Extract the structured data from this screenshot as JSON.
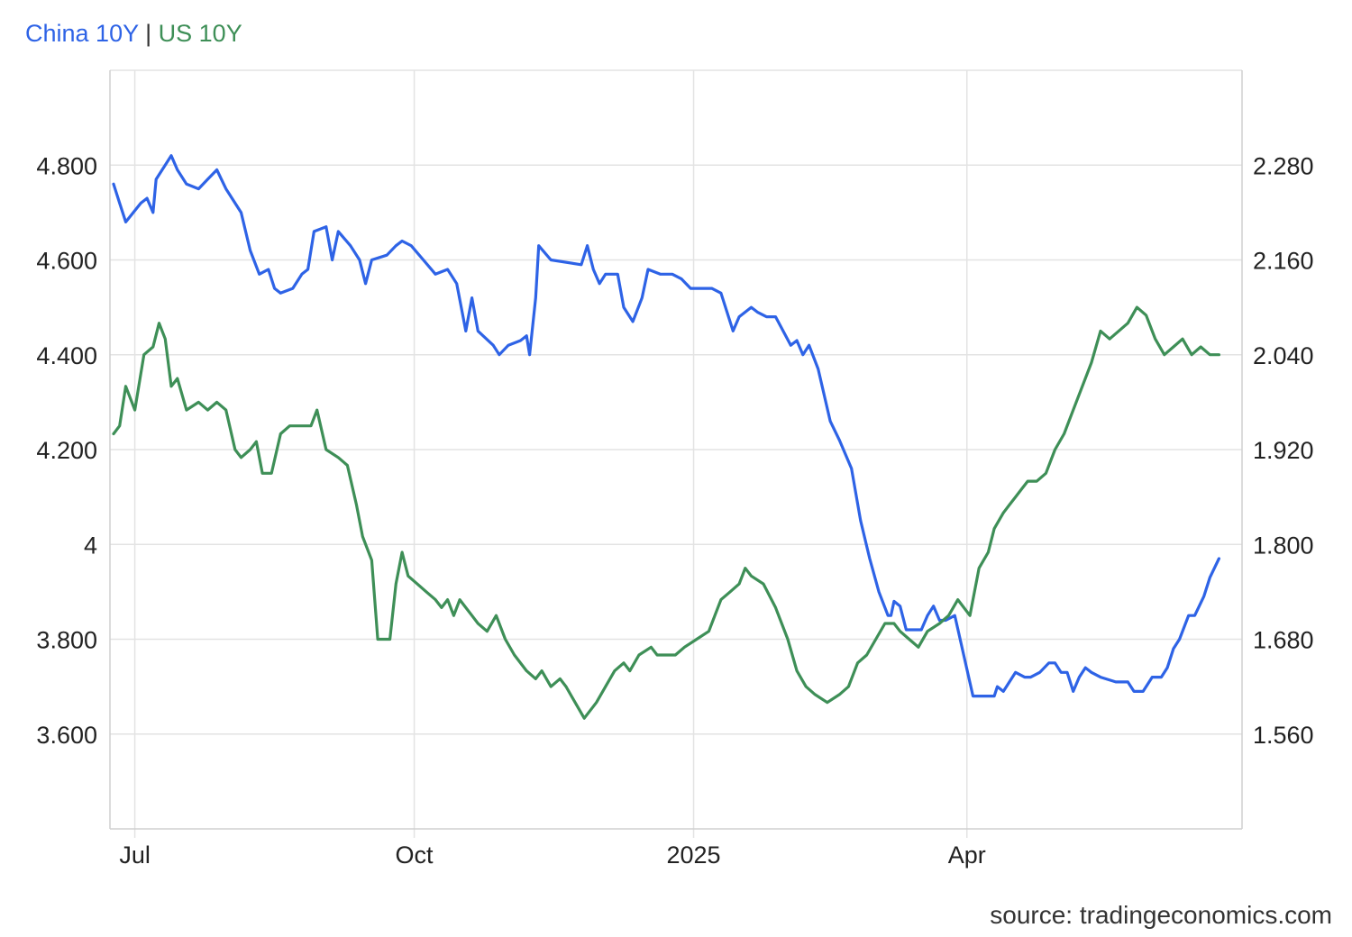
{
  "legend": {
    "china_label": "China 10Y",
    "separator": "|",
    "us_label": "US 10Y",
    "china_color": "#2e63e6",
    "us_color": "#3e8f57"
  },
  "source": "source: tradingeconomics.com",
  "chart_data": {
    "type": "line",
    "title": "",
    "grid": true,
    "legend_placement": "top-left",
    "x_ticks": [
      "Jul",
      "Oct",
      "2025",
      "Apr"
    ],
    "x_range": [
      "2024-06-24",
      "2025-06-23"
    ],
    "y_left": {
      "ticks": [
        "3.600",
        "3.800",
        "4",
        "4.200",
        "4.400",
        "4.600",
        "4.800"
      ],
      "range": [
        3.4,
        5.0
      ]
    },
    "y_right": {
      "ticks": [
        "1.560",
        "1.680",
        "1.800",
        "1.920",
        "2.040",
        "2.160",
        "2.280"
      ],
      "range": [
        1.44,
        2.4
      ]
    },
    "series": [
      {
        "name": "China 10Y",
        "axis": "left",
        "color": "#2e63e6",
        "points": [
          [
            "2024-06-24",
            4.76
          ],
          [
            "2024-06-26",
            4.72
          ],
          [
            "2024-06-28",
            4.68
          ],
          [
            "2024-07-03",
            4.72
          ],
          [
            "2024-07-05",
            4.73
          ],
          [
            "2024-07-07",
            4.7
          ],
          [
            "2024-07-08",
            4.77
          ],
          [
            "2024-07-11",
            4.8
          ],
          [
            "2024-07-13",
            4.82
          ],
          [
            "2024-07-15",
            4.79
          ],
          [
            "2024-07-18",
            4.76
          ],
          [
            "2024-07-22",
            4.75
          ],
          [
            "2024-07-25",
            4.77
          ],
          [
            "2024-07-28",
            4.79
          ],
          [
            "2024-07-31",
            4.75
          ],
          [
            "2024-08-05",
            4.7
          ],
          [
            "2024-08-08",
            4.62
          ],
          [
            "2024-08-11",
            4.57
          ],
          [
            "2024-08-14",
            4.58
          ],
          [
            "2024-08-16",
            4.54
          ],
          [
            "2024-08-18",
            4.53
          ],
          [
            "2024-08-22",
            4.54
          ],
          [
            "2024-08-25",
            4.57
          ],
          [
            "2024-08-27",
            4.58
          ],
          [
            "2024-08-29",
            4.66
          ],
          [
            "2024-09-02",
            4.67
          ],
          [
            "2024-09-04",
            4.6
          ],
          [
            "2024-09-06",
            4.66
          ],
          [
            "2024-09-10",
            4.63
          ],
          [
            "2024-09-13",
            4.6
          ],
          [
            "2024-09-15",
            4.55
          ],
          [
            "2024-09-17",
            4.6
          ],
          [
            "2024-09-22",
            4.61
          ],
          [
            "2024-09-25",
            4.63
          ],
          [
            "2024-09-27",
            4.64
          ],
          [
            "2024-09-30",
            4.63
          ],
          [
            "2024-10-04",
            4.6
          ],
          [
            "2024-10-08",
            4.57
          ],
          [
            "2024-10-12",
            4.58
          ],
          [
            "2024-10-15",
            4.55
          ],
          [
            "2024-10-18",
            4.45
          ],
          [
            "2024-10-20",
            4.52
          ],
          [
            "2024-10-22",
            4.45
          ],
          [
            "2024-10-27",
            4.42
          ],
          [
            "2024-10-29",
            4.4
          ],
          [
            "2024-11-01",
            4.42
          ],
          [
            "2024-11-05",
            4.43
          ],
          [
            "2024-11-07",
            4.44
          ],
          [
            "2024-11-08",
            4.4
          ],
          [
            "2024-11-10",
            4.52
          ],
          [
            "2024-11-11",
            4.63
          ],
          [
            "2024-11-15",
            4.6
          ],
          [
            "2024-11-25",
            4.59
          ],
          [
            "2024-11-27",
            4.63
          ],
          [
            "2024-11-29",
            4.58
          ],
          [
            "2024-12-01",
            4.55
          ],
          [
            "2024-12-03",
            4.57
          ],
          [
            "2024-12-07",
            4.57
          ],
          [
            "2024-12-09",
            4.5
          ],
          [
            "2024-12-12",
            4.47
          ],
          [
            "2024-12-15",
            4.52
          ],
          [
            "2024-12-17",
            4.58
          ],
          [
            "2024-12-21",
            4.57
          ],
          [
            "2024-12-25",
            4.57
          ],
          [
            "2024-12-28",
            4.56
          ],
          [
            "2024-12-31",
            4.54
          ],
          [
            "2025-01-07",
            4.54
          ],
          [
            "2025-01-10",
            4.53
          ],
          [
            "2025-01-14",
            4.45
          ],
          [
            "2025-01-16",
            4.48
          ],
          [
            "2025-01-20",
            4.5
          ],
          [
            "2025-01-22",
            4.49
          ],
          [
            "2025-01-25",
            4.48
          ],
          [
            "2025-01-28",
            4.48
          ],
          [
            "2025-02-02",
            4.42
          ],
          [
            "2025-02-04",
            4.43
          ],
          [
            "2025-02-06",
            4.4
          ],
          [
            "2025-02-08",
            4.42
          ],
          [
            "2025-02-11",
            4.37
          ],
          [
            "2025-02-15",
            4.26
          ],
          [
            "2025-02-18",
            4.22
          ],
          [
            "2025-02-22",
            4.16
          ],
          [
            "2025-02-25",
            4.05
          ],
          [
            "2025-02-28",
            3.97
          ],
          [
            "2025-03-03",
            3.9
          ],
          [
            "2025-03-06",
            3.85
          ],
          [
            "2025-03-07",
            3.85
          ],
          [
            "2025-03-08",
            3.88
          ],
          [
            "2025-03-10",
            3.87
          ],
          [
            "2025-03-12",
            3.82
          ],
          [
            "2025-03-17",
            3.82
          ],
          [
            "2025-03-19",
            3.85
          ],
          [
            "2025-03-21",
            3.87
          ],
          [
            "2025-03-23",
            3.84
          ],
          [
            "2025-03-25",
            3.84
          ],
          [
            "2025-03-28",
            3.85
          ],
          [
            "2025-04-03",
            3.68
          ],
          [
            "2025-04-06",
            3.68
          ],
          [
            "2025-04-10",
            3.68
          ],
          [
            "2025-04-11",
            3.7
          ],
          [
            "2025-04-13",
            3.69
          ],
          [
            "2025-04-15",
            3.71
          ],
          [
            "2025-04-17",
            3.73
          ],
          [
            "2025-04-20",
            3.72
          ],
          [
            "2025-04-22",
            3.72
          ],
          [
            "2025-04-25",
            3.73
          ],
          [
            "2025-04-28",
            3.75
          ],
          [
            "2025-04-30",
            3.75
          ],
          [
            "2025-05-02",
            3.73
          ],
          [
            "2025-05-04",
            3.73
          ],
          [
            "2025-05-06",
            3.69
          ],
          [
            "2025-05-08",
            3.72
          ],
          [
            "2025-05-10",
            3.74
          ],
          [
            "2025-05-12",
            3.73
          ],
          [
            "2025-05-15",
            3.72
          ],
          [
            "2025-05-20",
            3.71
          ],
          [
            "2025-05-22",
            3.71
          ],
          [
            "2025-05-24",
            3.71
          ],
          [
            "2025-05-26",
            3.69
          ],
          [
            "2025-05-29",
            3.69
          ],
          [
            "2025-06-01",
            3.72
          ],
          [
            "2025-06-04",
            3.72
          ],
          [
            "2025-06-06",
            3.74
          ],
          [
            "2025-06-08",
            3.78
          ],
          [
            "2025-06-10",
            3.8
          ],
          [
            "2025-06-13",
            3.85
          ],
          [
            "2025-06-15",
            3.85
          ],
          [
            "2025-06-18",
            3.89
          ],
          [
            "2025-06-20",
            3.93
          ],
          [
            "2025-06-23",
            3.97
          ]
        ]
      },
      {
        "name": "US 10Y",
        "axis": "right",
        "color": "#3e8f57",
        "points": [
          [
            "2024-06-24",
            1.94
          ],
          [
            "2024-06-26",
            1.95
          ],
          [
            "2024-06-28",
            2.0
          ],
          [
            "2024-07-01",
            1.97
          ],
          [
            "2024-07-04",
            2.04
          ],
          [
            "2024-07-07",
            2.05
          ],
          [
            "2024-07-09",
            2.08
          ],
          [
            "2024-07-11",
            2.06
          ],
          [
            "2024-07-13",
            2.0
          ],
          [
            "2024-07-15",
            2.01
          ],
          [
            "2024-07-18",
            1.97
          ],
          [
            "2024-07-22",
            1.98
          ],
          [
            "2024-07-25",
            1.97
          ],
          [
            "2024-07-28",
            1.98
          ],
          [
            "2024-07-31",
            1.97
          ],
          [
            "2024-08-03",
            1.92
          ],
          [
            "2024-08-05",
            1.91
          ],
          [
            "2024-08-08",
            1.92
          ],
          [
            "2024-08-10",
            1.93
          ],
          [
            "2024-08-12",
            1.89
          ],
          [
            "2024-08-15",
            1.89
          ],
          [
            "2024-08-18",
            1.94
          ],
          [
            "2024-08-21",
            1.95
          ],
          [
            "2024-08-25",
            1.95
          ],
          [
            "2024-08-28",
            1.95
          ],
          [
            "2024-08-30",
            1.97
          ],
          [
            "2024-09-02",
            1.92
          ],
          [
            "2024-09-06",
            1.91
          ],
          [
            "2024-09-09",
            1.9
          ],
          [
            "2024-09-12",
            1.85
          ],
          [
            "2024-09-14",
            1.81
          ],
          [
            "2024-09-17",
            1.78
          ],
          [
            "2024-09-19",
            1.68
          ],
          [
            "2024-09-23",
            1.68
          ],
          [
            "2024-09-25",
            1.75
          ],
          [
            "2024-09-27",
            1.79
          ],
          [
            "2024-09-29",
            1.76
          ],
          [
            "2024-10-02",
            1.75
          ],
          [
            "2024-10-05",
            1.74
          ],
          [
            "2024-10-08",
            1.73
          ],
          [
            "2024-10-10",
            1.72
          ],
          [
            "2024-10-12",
            1.73
          ],
          [
            "2024-10-14",
            1.71
          ],
          [
            "2024-10-16",
            1.73
          ],
          [
            "2024-10-18",
            1.72
          ],
          [
            "2024-10-20",
            1.71
          ],
          [
            "2024-10-22",
            1.7
          ],
          [
            "2024-10-25",
            1.69
          ],
          [
            "2024-10-28",
            1.71
          ],
          [
            "2024-10-31",
            1.68
          ],
          [
            "2024-11-03",
            1.66
          ],
          [
            "2024-11-07",
            1.64
          ],
          [
            "2024-11-10",
            1.63
          ],
          [
            "2024-11-12",
            1.64
          ],
          [
            "2024-11-15",
            1.62
          ],
          [
            "2024-11-18",
            1.63
          ],
          [
            "2024-11-20",
            1.62
          ],
          [
            "2024-11-23",
            1.6
          ],
          [
            "2024-11-26",
            1.58
          ],
          [
            "2024-11-30",
            1.6
          ],
          [
            "2024-12-03",
            1.62
          ],
          [
            "2024-12-06",
            1.64
          ],
          [
            "2024-12-09",
            1.65
          ],
          [
            "2024-12-11",
            1.64
          ],
          [
            "2024-12-14",
            1.66
          ],
          [
            "2024-12-18",
            1.67
          ],
          [
            "2024-12-20",
            1.66
          ],
          [
            "2024-12-23",
            1.66
          ],
          [
            "2024-12-26",
            1.66
          ],
          [
            "2024-12-29",
            1.67
          ],
          [
            "2025-01-02",
            1.68
          ],
          [
            "2025-01-06",
            1.69
          ],
          [
            "2025-01-08",
            1.71
          ],
          [
            "2025-01-10",
            1.73
          ],
          [
            "2025-01-13",
            1.74
          ],
          [
            "2025-01-16",
            1.75
          ],
          [
            "2025-01-18",
            1.77
          ],
          [
            "2025-01-20",
            1.76
          ],
          [
            "2025-01-24",
            1.75
          ],
          [
            "2025-01-28",
            1.72
          ],
          [
            "2025-02-01",
            1.68
          ],
          [
            "2025-02-04",
            1.64
          ],
          [
            "2025-02-07",
            1.62
          ],
          [
            "2025-02-10",
            1.61
          ],
          [
            "2025-02-14",
            1.6
          ],
          [
            "2025-02-18",
            1.61
          ],
          [
            "2025-02-21",
            1.62
          ],
          [
            "2025-02-24",
            1.65
          ],
          [
            "2025-02-27",
            1.66
          ],
          [
            "2025-03-02",
            1.68
          ],
          [
            "2025-03-05",
            1.7
          ],
          [
            "2025-03-08",
            1.7
          ],
          [
            "2025-03-10",
            1.69
          ],
          [
            "2025-03-13",
            1.68
          ],
          [
            "2025-03-16",
            1.67
          ],
          [
            "2025-03-19",
            1.69
          ],
          [
            "2025-03-23",
            1.7
          ],
          [
            "2025-03-26",
            1.71
          ],
          [
            "2025-03-29",
            1.73
          ],
          [
            "2025-04-02",
            1.71
          ],
          [
            "2025-04-05",
            1.77
          ],
          [
            "2025-04-08",
            1.79
          ],
          [
            "2025-04-10",
            1.82
          ],
          [
            "2025-04-13",
            1.84
          ],
          [
            "2025-04-15",
            1.85
          ],
          [
            "2025-04-17",
            1.86
          ],
          [
            "2025-04-19",
            1.87
          ],
          [
            "2025-04-21",
            1.88
          ],
          [
            "2025-04-24",
            1.88
          ],
          [
            "2025-04-27",
            1.89
          ],
          [
            "2025-04-30",
            1.92
          ],
          [
            "2025-05-03",
            1.94
          ],
          [
            "2025-05-06",
            1.97
          ],
          [
            "2025-05-09",
            2.0
          ],
          [
            "2025-05-12",
            2.03
          ],
          [
            "2025-05-15",
            2.07
          ],
          [
            "2025-05-18",
            2.06
          ],
          [
            "2025-05-21",
            2.07
          ],
          [
            "2025-05-24",
            2.08
          ],
          [
            "2025-05-27",
            2.1
          ],
          [
            "2025-05-30",
            2.09
          ],
          [
            "2025-06-02",
            2.06
          ],
          [
            "2025-06-05",
            2.04
          ],
          [
            "2025-06-08",
            2.05
          ],
          [
            "2025-06-11",
            2.06
          ],
          [
            "2025-06-14",
            2.04
          ],
          [
            "2025-06-17",
            2.05
          ],
          [
            "2025-06-20",
            2.04
          ],
          [
            "2025-06-23",
            2.04
          ]
        ]
      }
    ]
  }
}
